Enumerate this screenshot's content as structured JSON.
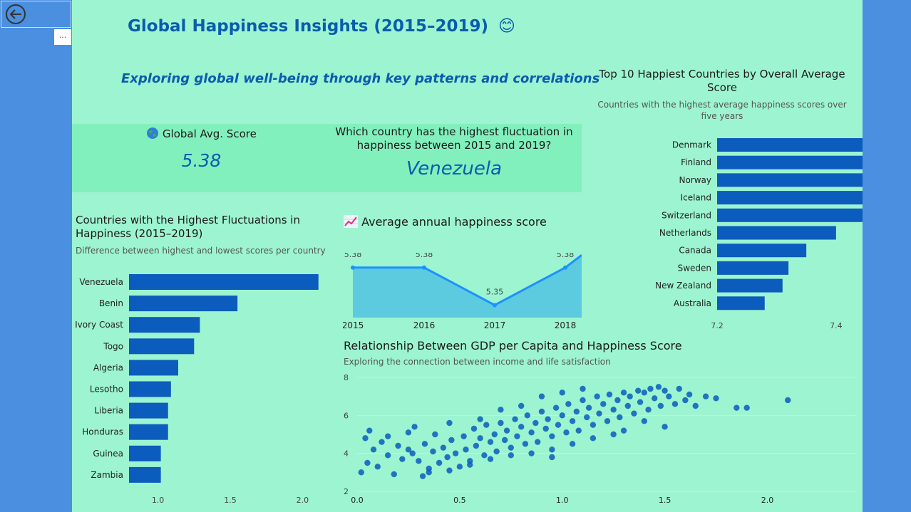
{
  "header": {
    "title": "Global Happiness Insights (2015–2019)",
    "title_emoji": "😊",
    "subtitle": "Exploring global well-being through key patterns and correlations"
  },
  "kpi_global": {
    "label": "Global Avg. Score",
    "value": "5.38"
  },
  "kpi_fluctuation": {
    "question": "Which country has the highest fluctuation in happiness between 2015 and 2019?",
    "answer": "Venezuela"
  },
  "colors": {
    "background": "#9df4d0",
    "kpi_band": "#82f0bd",
    "bar": "#0b5cbc",
    "line": "#1e90ff",
    "area": "#5ccbe0",
    "scatter": "#0b5cbc",
    "side": "#4a8fe0"
  },
  "icons": {
    "back": "arrow-left-circle-icon",
    "more": "ellipsis-icon",
    "globe": "globe-icon",
    "trend": "chart-increasing-icon"
  },
  "more_label": "···",
  "chart_top10": {
    "title": "Top 10 Happiest Countries by Overall Average Score",
    "subtitle": "Countries with the highest average happiness scores over five years"
  },
  "chart_fluct": {
    "title": "Countries with the Highest Fluctuations in Happiness (2015–2019)",
    "subtitle": "Difference between highest and lowest scores per country"
  },
  "chart_line": {
    "title": "Average annual happiness score"
  },
  "chart_scatter": {
    "title": "Relationship Between GDP per Capita and Happiness Score",
    "subtitle": "Exploring the connection between income and life satisfaction"
  },
  "chart_data": [
    {
      "type": "bar",
      "orientation": "horizontal",
      "categories": [
        "Denmark",
        "Finland",
        "Norway",
        "Iceland",
        "Switzerland",
        "Netherlands",
        "Canada",
        "Sweden",
        "New Zealand",
        "Australia"
      ],
      "values": [
        7.55,
        7.54,
        7.54,
        7.51,
        7.51,
        7.4,
        7.35,
        7.32,
        7.31,
        7.28
      ],
      "xlim": [
        7.2,
        7.55
      ],
      "xticks": [
        "7.2",
        "7.4"
      ]
    },
    {
      "type": "bar",
      "orientation": "horizontal",
      "categories": [
        "Venezuela",
        "Benin",
        "Ivory Coast",
        "Togo",
        "Algeria",
        "Lesotho",
        "Liberia",
        "Honduras",
        "Guinea",
        "Zambia"
      ],
      "values": [
        2.11,
        1.55,
        1.29,
        1.25,
        1.14,
        1.09,
        1.07,
        1.07,
        1.02,
        1.02
      ],
      "xlim": [
        0.8,
        2.2
      ],
      "xticks": [
        "1.0",
        "1.5",
        "2.0"
      ]
    },
    {
      "type": "area",
      "x": [
        "2015",
        "2016",
        "2017",
        "2018"
      ],
      "values": [
        5.38,
        5.38,
        5.35,
        5.38
      ],
      "labels": [
        "5.38",
        "5.38",
        "5.35",
        "5.38"
      ]
    },
    {
      "type": "scatter",
      "xlabel": "",
      "ylabel": "",
      "xlim": [
        0,
        2.2
      ],
      "ylim": [
        2,
        8
      ],
      "xticks": [
        "0.0",
        "0.5",
        "1.0",
        "1.5",
        "2.0"
      ],
      "yticks": [
        "8",
        "6",
        "4",
        "2"
      ],
      "points": [
        [
          0.02,
          3.0
        ],
        [
          0.05,
          3.5
        ],
        [
          0.08,
          4.2
        ],
        [
          0.04,
          4.8
        ],
        [
          0.06,
          5.2
        ],
        [
          0.1,
          3.3
        ],
        [
          0.12,
          4.6
        ],
        [
          0.15,
          3.9
        ],
        [
          0.18,
          2.9
        ],
        [
          0.2,
          4.4
        ],
        [
          0.22,
          3.7
        ],
        [
          0.25,
          5.1
        ],
        [
          0.27,
          4.0
        ],
        [
          0.3,
          3.6
        ],
        [
          0.32,
          2.8
        ],
        [
          0.33,
          4.5
        ],
        [
          0.35,
          3.2
        ],
        [
          0.37,
          4.1
        ],
        [
          0.38,
          5.0
        ],
        [
          0.4,
          3.5
        ],
        [
          0.42,
          4.3
        ],
        [
          0.44,
          3.8
        ],
        [
          0.46,
          4.7
        ],
        [
          0.48,
          4.0
        ],
        [
          0.5,
          3.3
        ],
        [
          0.52,
          4.9
        ],
        [
          0.53,
          4.2
        ],
        [
          0.55,
          3.6
        ],
        [
          0.57,
          5.3
        ],
        [
          0.58,
          4.4
        ],
        [
          0.6,
          4.8
        ],
        [
          0.62,
          3.9
        ],
        [
          0.63,
          5.5
        ],
        [
          0.65,
          4.6
        ],
        [
          0.67,
          5.0
        ],
        [
          0.68,
          4.1
        ],
        [
          0.7,
          5.6
        ],
        [
          0.72,
          4.7
        ],
        [
          0.73,
          5.2
        ],
        [
          0.75,
          4.3
        ],
        [
          0.77,
          5.8
        ],
        [
          0.78,
          4.9
        ],
        [
          0.8,
          5.4
        ],
        [
          0.82,
          4.5
        ],
        [
          0.83,
          6.0
        ],
        [
          0.85,
          5.1
        ],
        [
          0.87,
          5.6
        ],
        [
          0.88,
          4.6
        ],
        [
          0.9,
          6.2
        ],
        [
          0.92,
          5.3
        ],
        [
          0.93,
          5.8
        ],
        [
          0.95,
          4.9
        ],
        [
          0.97,
          6.4
        ],
        [
          0.98,
          5.5
        ],
        [
          1.0,
          6.0
        ],
        [
          1.02,
          5.1
        ],
        [
          1.03,
          6.6
        ],
        [
          1.05,
          5.7
        ],
        [
          1.07,
          6.2
        ],
        [
          1.08,
          5.2
        ],
        [
          1.1,
          6.8
        ],
        [
          1.12,
          5.9
        ],
        [
          1.13,
          6.4
        ],
        [
          1.15,
          5.5
        ],
        [
          1.17,
          7.0
        ],
        [
          1.18,
          6.1
        ],
        [
          1.2,
          6.6
        ],
        [
          1.22,
          5.7
        ],
        [
          1.23,
          7.1
        ],
        [
          1.25,
          6.3
        ],
        [
          1.27,
          6.8
        ],
        [
          1.28,
          5.9
        ],
        [
          1.3,
          7.2
        ],
        [
          1.32,
          6.5
        ],
        [
          1.33,
          7.0
        ],
        [
          1.35,
          6.1
        ],
        [
          1.37,
          7.3
        ],
        [
          1.38,
          6.7
        ],
        [
          1.4,
          7.2
        ],
        [
          1.42,
          6.3
        ],
        [
          1.43,
          7.4
        ],
        [
          1.45,
          6.9
        ],
        [
          1.47,
          7.5
        ],
        [
          1.48,
          6.5
        ],
        [
          1.5,
          7.3
        ],
        [
          1.52,
          7.0
        ],
        [
          1.55,
          6.6
        ],
        [
          1.57,
          7.4
        ],
        [
          1.6,
          6.8
        ],
        [
          1.62,
          7.1
        ],
        [
          1.65,
          6.5
        ],
        [
          1.7,
          7.0
        ],
        [
          1.75,
          6.9
        ],
        [
          1.85,
          6.4
        ],
        [
          1.9,
          6.4
        ],
        [
          2.1,
          6.8
        ],
        [
          0.35,
          3.0
        ],
        [
          0.45,
          3.1
        ],
        [
          0.55,
          3.4
        ],
        [
          0.65,
          3.7
        ],
        [
          0.75,
          3.9
        ],
        [
          0.85,
          4.0
        ],
        [
          0.95,
          4.2
        ],
        [
          1.05,
          4.5
        ],
        [
          1.15,
          4.8
        ],
        [
          1.25,
          5.0
        ],
        [
          0.6,
          5.8
        ],
        [
          0.7,
          6.3
        ],
        [
          0.8,
          6.5
        ],
        [
          0.9,
          7.0
        ],
        [
          1.0,
          7.2
        ],
        [
          1.1,
          7.4
        ],
        [
          0.25,
          4.2
        ],
        [
          0.15,
          4.9
        ],
        [
          0.28,
          5.4
        ],
        [
          0.45,
          5.6
        ],
        [
          1.4,
          5.7
        ],
        [
          1.5,
          5.4
        ],
        [
          1.3,
          5.2
        ],
        [
          0.95,
          3.8
        ]
      ]
    }
  ]
}
